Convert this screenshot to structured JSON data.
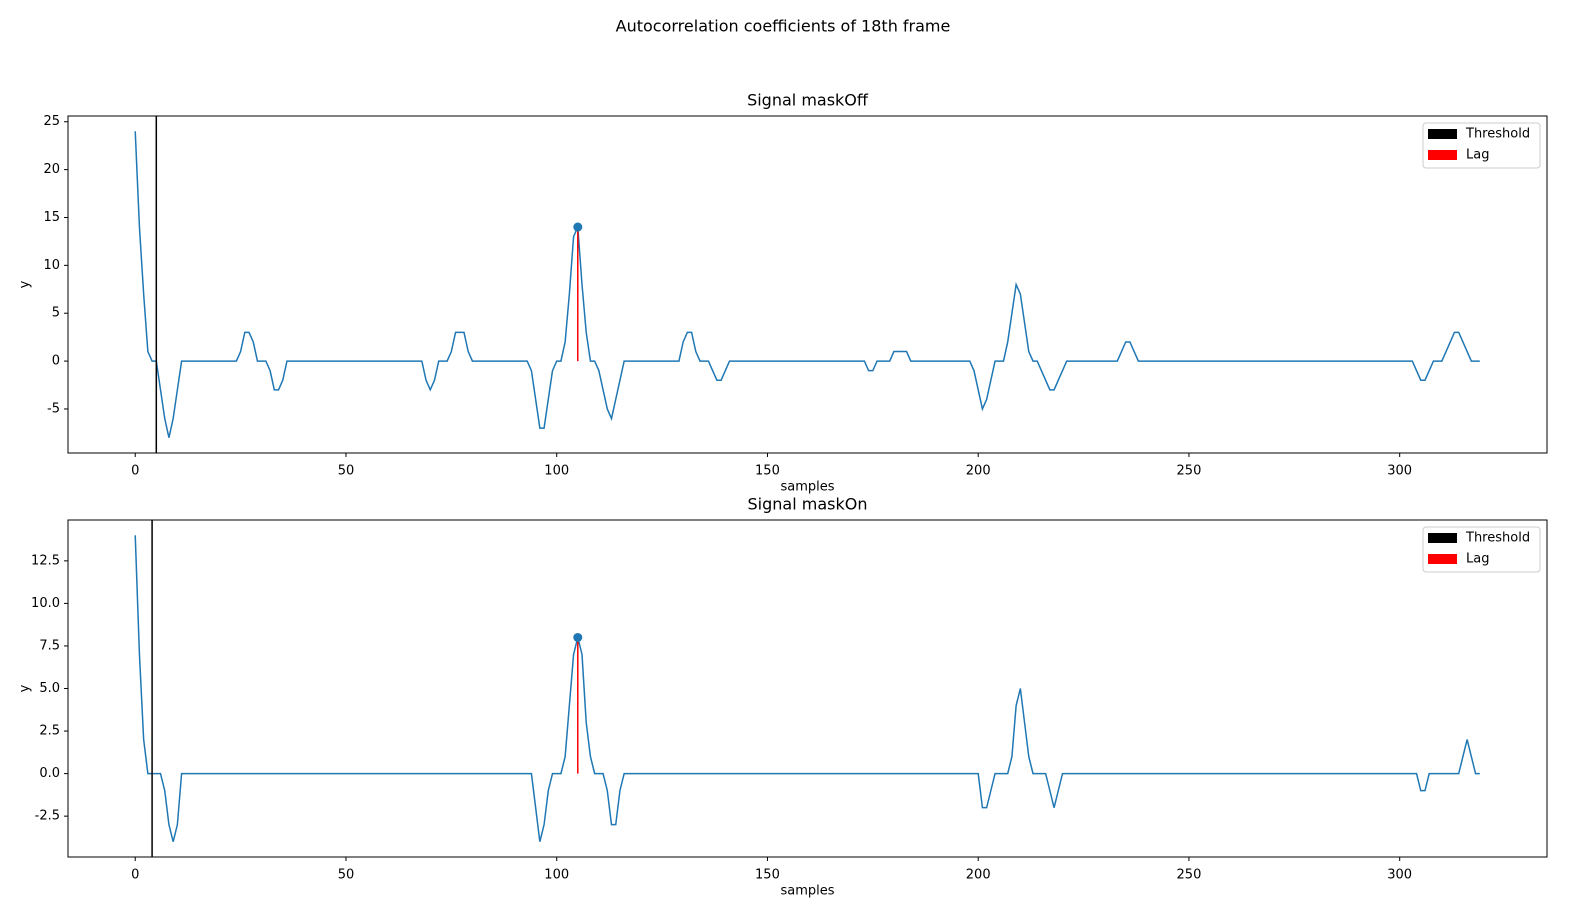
{
  "title": "Autocorrelation coefficients of 18th frame",
  "chart_data": [
    {
      "type": "line",
      "title": "Signal maskOff",
      "x_label": "samples",
      "y_label": "y",
      "x": [
        0,
        1,
        2,
        3,
        4,
        5,
        6,
        7,
        8,
        9,
        10,
        11,
        12,
        13,
        14,
        15,
        16,
        17,
        18,
        19,
        20,
        21,
        22,
        23,
        24,
        25,
        26,
        27,
        28,
        29,
        30,
        31,
        32,
        33,
        34,
        35,
        36,
        37,
        38,
        39,
        40,
        41,
        42,
        43,
        44,
        45,
        46,
        47,
        48,
        49,
        50,
        51,
        52,
        53,
        54,
        55,
        56,
        57,
        58,
        59,
        60,
        61,
        62,
        63,
        64,
        65,
        66,
        67,
        68,
        69,
        70,
        71,
        72,
        73,
        74,
        75,
        76,
        77,
        78,
        79,
        80,
        81,
        82,
        83,
        84,
        85,
        86,
        87,
        88,
        89,
        90,
        91,
        92,
        93,
        94,
        95,
        96,
        97,
        98,
        99,
        100,
        101,
        102,
        103,
        104,
        105,
        106,
        107,
        108,
        109,
        110,
        111,
        112,
        113,
        114,
        115,
        116,
        117,
        118,
        119,
        120,
        121,
        122,
        123,
        124,
        125,
        126,
        127,
        128,
        129,
        130,
        131,
        132,
        133,
        134,
        135,
        136,
        137,
        138,
        139,
        140,
        141,
        142,
        143,
        144,
        145,
        146,
        147,
        148,
        149,
        150,
        151,
        152,
        153,
        154,
        155,
        156,
        157,
        158,
        159,
        160,
        161,
        162,
        163,
        164,
        165,
        166,
        167,
        168,
        169,
        170,
        171,
        172,
        173,
        174,
        175,
        176,
        177,
        178,
        179,
        180,
        181,
        182,
        183,
        184,
        185,
        186,
        187,
        188,
        189,
        190,
        191,
        192,
        193,
        194,
        195,
        196,
        197,
        198,
        199,
        200,
        201,
        202,
        203,
        204,
        205,
        206,
        207,
        208,
        209,
        210,
        211,
        212,
        213,
        214,
        215,
        216,
        217,
        218,
        219,
        220,
        221,
        222,
        223,
        224,
        225,
        226,
        227,
        228,
        229,
        230,
        231,
        232,
        233,
        234,
        235,
        236,
        237,
        238,
        239,
        240,
        241,
        242,
        243,
        244,
        245,
        246,
        247,
        248,
        249,
        250,
        251,
        252,
        253,
        254,
        255,
        256,
        257,
        258,
        259,
        260,
        261,
        262,
        263,
        264,
        265,
        266,
        267,
        268,
        269,
        270,
        271,
        272,
        273,
        274,
        275,
        276,
        277,
        278,
        279,
        280,
        281,
        282,
        283,
        284,
        285,
        286,
        287,
        288,
        289,
        290,
        291,
        292,
        293,
        294,
        295,
        296,
        297,
        298,
        299,
        300,
        301,
        302,
        303,
        304,
        305,
        306,
        307,
        308,
        309,
        310,
        311,
        312,
        313,
        314,
        315,
        316,
        317,
        318,
        319
      ],
      "series": [
        {
          "color": "#1f77b4",
          "values": [
            24,
            14,
            7,
            1,
            0,
            0,
            -3,
            -6,
            -8,
            -6,
            -3,
            0,
            0,
            0,
            0,
            0,
            0,
            0,
            0,
            0,
            0,
            0,
            0,
            0,
            0,
            1,
            3,
            3,
            2,
            0,
            0,
            0,
            -1,
            -3,
            -3,
            -2,
            0,
            0,
            0,
            0,
            0,
            0,
            0,
            0,
            0,
            0,
            0,
            0,
            0,
            0,
            0,
            0,
            0,
            0,
            0,
            0,
            0,
            0,
            0,
            0,
            0,
            0,
            0,
            0,
            0,
            0,
            0,
            0,
            0,
            -2,
            -3,
            -2,
            0,
            0,
            0,
            1,
            3,
            3,
            3,
            1,
            0,
            0,
            0,
            0,
            0,
            0,
            0,
            0,
            0,
            0,
            0,
            0,
            0,
            0,
            -1,
            -4,
            -7,
            -7,
            -4,
            -1,
            0,
            0,
            2,
            7,
            13,
            14,
            8,
            3,
            0,
            0,
            -1,
            -3,
            -5,
            -6,
            -4,
            -2,
            0,
            0,
            0,
            0,
            0,
            0,
            0,
            0,
            0,
            0,
            0,
            0,
            0,
            0,
            2,
            3,
            3,
            1,
            0,
            0,
            0,
            -1,
            -2,
            -2,
            -1,
            0,
            0,
            0,
            0,
            0,
            0,
            0,
            0,
            0,
            0,
            0,
            0,
            0,
            0,
            0,
            0,
            0,
            0,
            0,
            0,
            0,
            0,
            0,
            0,
            0,
            0,
            0,
            0,
            0,
            0,
            0,
            0,
            0,
            -1,
            -1,
            0,
            0,
            0,
            0,
            1,
            1,
            1,
            1,
            0,
            0,
            0,
            0,
            0,
            0,
            0,
            0,
            0,
            0,
            0,
            0,
            0,
            0,
            0,
            -1,
            -3,
            -5,
            -4,
            -2,
            0,
            0,
            0,
            2,
            5,
            8,
            7,
            4,
            1,
            0,
            0,
            -1,
            -2,
            -3,
            -3,
            -2,
            -1,
            0,
            0,
            0,
            0,
            0,
            0,
            0,
            0,
            0,
            0,
            0,
            0,
            0,
            1,
            2,
            2,
            1,
            0,
            0,
            0,
            0,
            0,
            0,
            0,
            0,
            0,
            0,
            0,
            0,
            0,
            0,
            0,
            0,
            0,
            0,
            0,
            0,
            0,
            0,
            0,
            0,
            0,
            0,
            0,
            0,
            0,
            0,
            0,
            0,
            0,
            0,
            0,
            0,
            0,
            0,
            0,
            0,
            0,
            0,
            0,
            0,
            0,
            0,
            0,
            0,
            0,
            0,
            0,
            0,
            0,
            0,
            0,
            0,
            0,
            0,
            0,
            0,
            0,
            0,
            0,
            0,
            0,
            0,
            -1,
            -2,
            -2,
            -1,
            0,
            0,
            0,
            1,
            2,
            3,
            3,
            2,
            1,
            0,
            0,
            0
          ]
        }
      ],
      "threshold": {
        "name": "Threshold",
        "color": "#000000",
        "x": 5
      },
      "lag": {
        "name": "Lag",
        "color": "#ff0000",
        "x": 105,
        "value": 14
      },
      "xlim": [
        -15.95,
        334.95
      ],
      "xticks": [
        0,
        50,
        100,
        150,
        200,
        250,
        300
      ],
      "ylim": [
        -9.6,
        25.6
      ],
      "yticks": [
        -5,
        0,
        5,
        10,
        15,
        20,
        25
      ],
      "grid": false,
      "legend": "upper right"
    },
    {
      "type": "line",
      "title": "Signal maskOn",
      "x_label": "samples",
      "y_label": "y",
      "x": [
        0,
        1,
        2,
        3,
        4,
        5,
        6,
        7,
        8,
        9,
        10,
        11,
        12,
        13,
        14,
        15,
        16,
        17,
        18,
        19,
        20,
        21,
        22,
        23,
        24,
        25,
        26,
        27,
        28,
        29,
        30,
        31,
        32,
        33,
        34,
        35,
        36,
        37,
        38,
        39,
        40,
        41,
        42,
        43,
        44,
        45,
        46,
        47,
        48,
        49,
        50,
        51,
        52,
        53,
        54,
        55,
        56,
        57,
        58,
        59,
        60,
        61,
        62,
        63,
        64,
        65,
        66,
        67,
        68,
        69,
        70,
        71,
        72,
        73,
        74,
        75,
        76,
        77,
        78,
        79,
        80,
        81,
        82,
        83,
        84,
        85,
        86,
        87,
        88,
        89,
        90,
        91,
        92,
        93,
        94,
        95,
        96,
        97,
        98,
        99,
        100,
        101,
        102,
        103,
        104,
        105,
        106,
        107,
        108,
        109,
        110,
        111,
        112,
        113,
        114,
        115,
        116,
        117,
        118,
        119,
        120,
        121,
        122,
        123,
        124,
        125,
        126,
        127,
        128,
        129,
        130,
        131,
        132,
        133,
        134,
        135,
        136,
        137,
        138,
        139,
        140,
        141,
        142,
        143,
        144,
        145,
        146,
        147,
        148,
        149,
        150,
        151,
        152,
        153,
        154,
        155,
        156,
        157,
        158,
        159,
        160,
        161,
        162,
        163,
        164,
        165,
        166,
        167,
        168,
        169,
        170,
        171,
        172,
        173,
        174,
        175,
        176,
        177,
        178,
        179,
        180,
        181,
        182,
        183,
        184,
        185,
        186,
        187,
        188,
        189,
        190,
        191,
        192,
        193,
        194,
        195,
        196,
        197,
        198,
        199,
        200,
        201,
        202,
        203,
        204,
        205,
        206,
        207,
        208,
        209,
        210,
        211,
        212,
        213,
        214,
        215,
        216,
        217,
        218,
        219,
        220,
        221,
        222,
        223,
        224,
        225,
        226,
        227,
        228,
        229,
        230,
        231,
        232,
        233,
        234,
        235,
        236,
        237,
        238,
        239,
        240,
        241,
        242,
        243,
        244,
        245,
        246,
        247,
        248,
        249,
        250,
        251,
        252,
        253,
        254,
        255,
        256,
        257,
        258,
        259,
        260,
        261,
        262,
        263,
        264,
        265,
        266,
        267,
        268,
        269,
        270,
        271,
        272,
        273,
        274,
        275,
        276,
        277,
        278,
        279,
        280,
        281,
        282,
        283,
        284,
        285,
        286,
        287,
        288,
        289,
        290,
        291,
        292,
        293,
        294,
        295,
        296,
        297,
        298,
        299,
        300,
        301,
        302,
        303,
        304,
        305,
        306,
        307,
        308,
        309,
        310,
        311,
        312,
        313,
        314,
        315,
        316,
        317,
        318,
        319
      ],
      "series": [
        {
          "color": "#1f77b4",
          "values": [
            14,
            7,
            2,
            0,
            0,
            0,
            0,
            -1,
            -3,
            -4,
            -3,
            0,
            0,
            0,
            0,
            0,
            0,
            0,
            0,
            0,
            0,
            0,
            0,
            0,
            0,
            0,
            0,
            0,
            0,
            0,
            0,
            0,
            0,
            0,
            0,
            0,
            0,
            0,
            0,
            0,
            0,
            0,
            0,
            0,
            0,
            0,
            0,
            0,
            0,
            0,
            0,
            0,
            0,
            0,
            0,
            0,
            0,
            0,
            0,
            0,
            0,
            0,
            0,
            0,
            0,
            0,
            0,
            0,
            0,
            0,
            0,
            0,
            0,
            0,
            0,
            0,
            0,
            0,
            0,
            0,
            0,
            0,
            0,
            0,
            0,
            0,
            0,
            0,
            0,
            0,
            0,
            0,
            0,
            0,
            0,
            -2,
            -4,
            -3,
            -1,
            0,
            0,
            0,
            1,
            4,
            7,
            8,
            7,
            3,
            1,
            0,
            0,
            0,
            -1,
            -3,
            -3,
            -1,
            0,
            0,
            0,
            0,
            0,
            0,
            0,
            0,
            0,
            0,
            0,
            0,
            0,
            0,
            0,
            0,
            0,
            0,
            0,
            0,
            0,
            0,
            0,
            0,
            0,
            0,
            0,
            0,
            0,
            0,
            0,
            0,
            0,
            0,
            0,
            0,
            0,
            0,
            0,
            0,
            0,
            0,
            0,
            0,
            0,
            0,
            0,
            0,
            0,
            0,
            0,
            0,
            0,
            0,
            0,
            0,
            0,
            0,
            0,
            0,
            0,
            0,
            0,
            0,
            0,
            0,
            0,
            0,
            0,
            0,
            0,
            0,
            0,
            0,
            0,
            0,
            0,
            0,
            0,
            0,
            0,
            0,
            0,
            0,
            0,
            -2,
            -2,
            -1,
            0,
            0,
            0,
            0,
            1,
            4,
            5,
            3,
            1,
            0,
            0,
            0,
            0,
            -1,
            -2,
            -1,
            0,
            0,
            0,
            0,
            0,
            0,
            0,
            0,
            0,
            0,
            0,
            0,
            0,
            0,
            0,
            0,
            0,
            0,
            0,
            0,
            0,
            0,
            0,
            0,
            0,
            0,
            0,
            0,
            0,
            0,
            0,
            0,
            0,
            0,
            0,
            0,
            0,
            0,
            0,
            0,
            0,
            0,
            0,
            0,
            0,
            0,
            0,
            0,
            0,
            0,
            0,
            0,
            0,
            0,
            0,
            0,
            0,
            0,
            0,
            0,
            0,
            0,
            0,
            0,
            0,
            0,
            0,
            0,
            0,
            0,
            0,
            0,
            0,
            0,
            0,
            0,
            0,
            0,
            0,
            0,
            0,
            0,
            0,
            0,
            0,
            -1,
            -1,
            0,
            0,
            0,
            0,
            0,
            0,
            0,
            0,
            1,
            2,
            1,
            0,
            0
          ]
        }
      ],
      "threshold": {
        "name": "Threshold",
        "color": "#000000",
        "x": 4
      },
      "lag": {
        "name": "Lag",
        "color": "#ff0000",
        "x": 105,
        "value": 8
      },
      "xlim": [
        -15.95,
        334.95
      ],
      "xticks": [
        0,
        50,
        100,
        150,
        200,
        250,
        300
      ],
      "ylim": [
        -4.9,
        14.9
      ],
      "yticks": [
        -2.5,
        {
          "value": 0,
          "label": "0.0"
        },
        2.5,
        {
          "value": 5,
          "label": "5.0"
        },
        7.5,
        {
          "value": 10,
          "label": "10.0"
        },
        12.5
      ],
      "grid": false,
      "legend": "upper right"
    }
  ]
}
